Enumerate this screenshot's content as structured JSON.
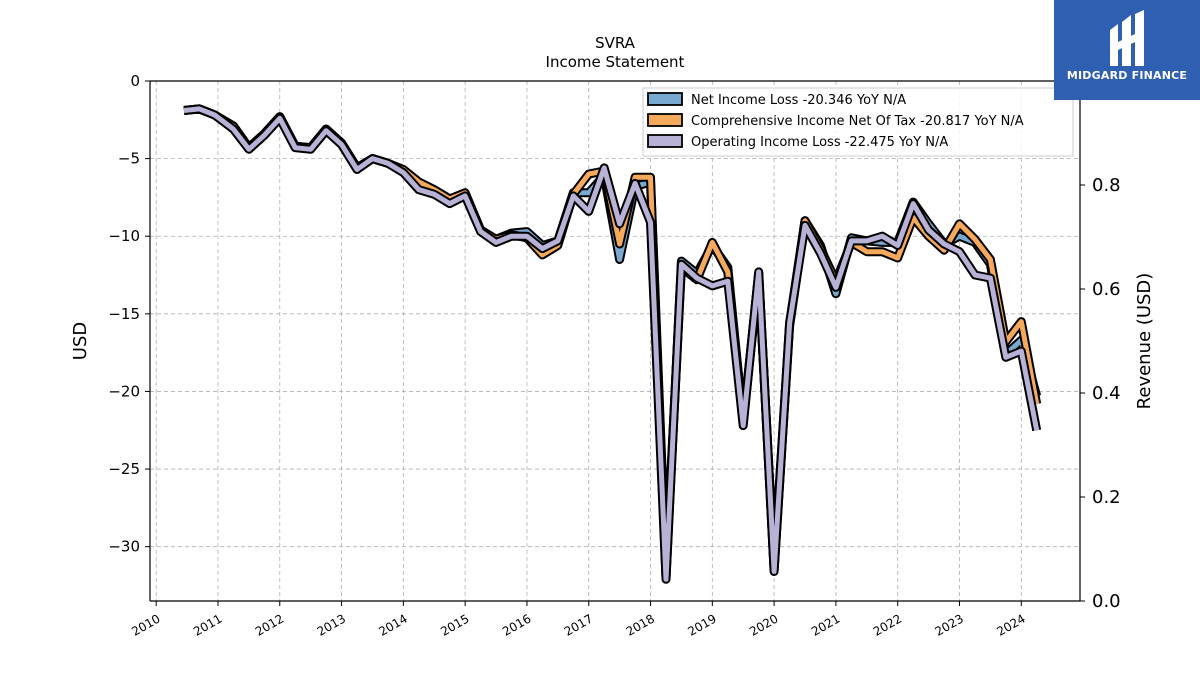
{
  "chart_data": {
    "type": "line",
    "title": "SVRA",
    "subtitle": "Income Statement",
    "ylabel": "USD",
    "ylabel_right": "Revenue (USD)",
    "ylim": [
      -33.5,
      0
    ],
    "yticks": [
      0,
      -5,
      -10,
      -15,
      -20,
      -25,
      -30
    ],
    "ytick_labels": [
      "0",
      "−5",
      "−10",
      "−15",
      "−20",
      "−25",
      "−30"
    ],
    "ylim_right": [
      0,
      1.0
    ],
    "yticks_right": [
      0.0,
      0.2,
      0.4,
      0.6,
      0.8
    ],
    "ytick_labels_right": [
      "0.0",
      "0.2",
      "0.4",
      "0.6",
      "0.8"
    ],
    "xlim": [
      2009.9,
      2024.95
    ],
    "xticks": [
      2010,
      2011,
      2012,
      2013,
      2014,
      2015,
      2016,
      2017,
      2018,
      2019,
      2020,
      2021,
      2022,
      2023,
      2024
    ],
    "xtick_labels": [
      "2010",
      "2011",
      "2012",
      "2013",
      "2014",
      "2015",
      "2016",
      "2017",
      "2018",
      "2019",
      "2020",
      "2021",
      "2022",
      "2023",
      "2024"
    ],
    "grid": true,
    "legend_position": "top-right",
    "x": [
      2010.45,
      2010.7,
      2010.95,
      2011.25,
      2011.5,
      2011.75,
      2012.0,
      2012.25,
      2012.5,
      2012.75,
      2013.0,
      2013.25,
      2013.5,
      2013.75,
      2014.0,
      2014.25,
      2014.5,
      2014.75,
      2015.0,
      2015.25,
      2015.5,
      2015.75,
      2016.0,
      2016.25,
      2016.5,
      2016.75,
      2017.0,
      2017.25,
      2017.5,
      2017.75,
      2018.0,
      2018.25,
      2018.5,
      2018.75,
      2019.0,
      2019.25,
      2019.5,
      2019.75,
      2020.0,
      2020.25,
      2020.5,
      2020.75,
      2021.0,
      2021.25,
      2021.5,
      2021.75,
      2022.0,
      2022.25,
      2022.5,
      2022.75,
      2023.0,
      2023.25,
      2023.5,
      2023.75,
      2024.0,
      2024.25
    ],
    "series": [
      {
        "name": "Net Income Loss  -20.346 YoY N/A",
        "color": "#7aa9cf",
        "values": [
          -1.9,
          -1.8,
          -2.2,
          -2.9,
          -4.3,
          -3.4,
          -2.3,
          -4.2,
          -4.3,
          -3.1,
          -4.0,
          -5.6,
          -5.0,
          -5.3,
          -5.8,
          -6.6,
          -7.0,
          -7.6,
          -7.2,
          -9.6,
          -10.2,
          -9.8,
          -9.7,
          -10.6,
          -10.3,
          -7.2,
          -7.2,
          -6.1,
          -11.5,
          -6.8,
          -6.5,
          -32.0,
          -11.6,
          -12.4,
          -10.6,
          -12.0,
          -22.0,
          -12.4,
          -31.5,
          -15.8,
          -9.0,
          -10.6,
          -13.7,
          -10.1,
          -10.3,
          -10.4,
          -10.4,
          -7.8,
          -9.2,
          -10.5,
          -10.0,
          -10.4,
          -11.8,
          -17.6,
          -16.7,
          -20.3
        ]
      },
      {
        "name": "Comprehensive Income Net Of Tax  -20.817 YoY N/A",
        "color": "#f5a95b",
        "values": [
          -1.9,
          -1.8,
          -2.2,
          -2.9,
          -4.3,
          -3.4,
          -2.3,
          -4.2,
          -4.3,
          -3.1,
          -4.0,
          -5.6,
          -5.0,
          -5.3,
          -5.7,
          -6.5,
          -7.0,
          -7.6,
          -7.2,
          -9.6,
          -10.2,
          -9.9,
          -10.1,
          -11.2,
          -10.6,
          -7.3,
          -6.0,
          -5.8,
          -10.5,
          -6.2,
          -6.2,
          -31.5,
          -12.0,
          -12.8,
          -10.4,
          -12.3,
          -22.0,
          -12.4,
          -31.4,
          -15.6,
          -9.0,
          -10.8,
          -12.9,
          -10.4,
          -11.0,
          -11.0,
          -11.4,
          -8.8,
          -10.0,
          -10.9,
          -9.2,
          -10.2,
          -11.5,
          -16.8,
          -15.5,
          -20.8
        ]
      },
      {
        "name": "Operating Income Loss  -22.475 YoY N/A",
        "color": "#b7b2d6",
        "values": [
          -1.9,
          -1.8,
          -2.2,
          -3.1,
          -4.4,
          -3.5,
          -2.4,
          -4.3,
          -4.4,
          -3.2,
          -4.1,
          -5.7,
          -5.0,
          -5.3,
          -5.9,
          -7.0,
          -7.3,
          -7.9,
          -7.4,
          -9.7,
          -10.4,
          -10.0,
          -10.0,
          -10.8,
          -10.3,
          -7.4,
          -8.4,
          -5.6,
          -9.2,
          -6.6,
          -9.1,
          -32.1,
          -11.8,
          -12.7,
          -13.2,
          -12.9,
          -22.2,
          -12.3,
          -31.6,
          -15.6,
          -9.3,
          -11.1,
          -13.3,
          -10.3,
          -10.3,
          -10.0,
          -10.6,
          -7.9,
          -9.6,
          -10.5,
          -11.0,
          -12.5,
          -12.7,
          -17.8,
          -17.4,
          -22.5
        ]
      }
    ]
  },
  "logo": {
    "text": "MIDGARD FINANCE",
    "icon": "midgard-logo-icon",
    "background": "#2f5fb0"
  }
}
